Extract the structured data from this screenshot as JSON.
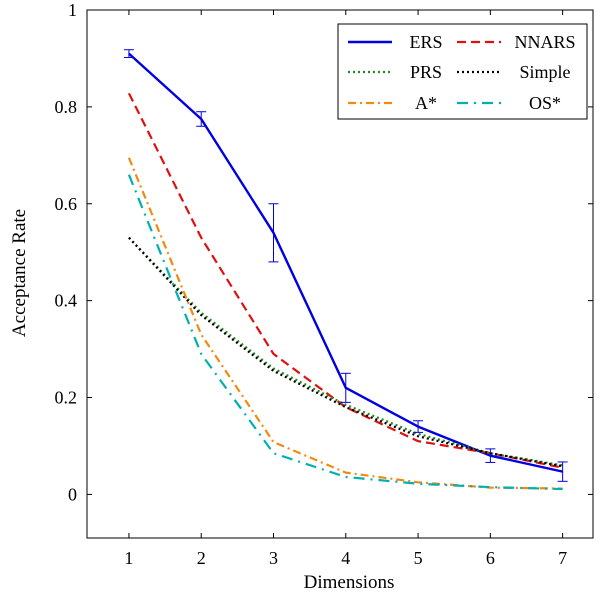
{
  "chart_data": {
    "type": "line",
    "title": "",
    "xlabel": "Dimensions",
    "ylabel": "Acceptance Rate",
    "x": [
      1,
      2,
      3,
      4,
      5,
      6,
      7
    ],
    "xticks": [
      "1",
      "2",
      "3",
      "4",
      "5",
      "6",
      "7"
    ],
    "yticks": [
      "0",
      "0.2",
      "0.4",
      "0.6",
      "0.8",
      "1"
    ],
    "ytick_values": [
      0,
      0.2,
      0.4,
      0.6,
      0.8,
      1
    ],
    "xlim": [
      0.42,
      7.42
    ],
    "ylim": [
      -0.09,
      1.0
    ],
    "grid": false,
    "legend_position": "top-right",
    "series": [
      {
        "name": "ERS",
        "values": [
          0.91,
          0.775,
          0.54,
          0.22,
          0.14,
          0.08,
          0.047
        ],
        "color": "#0000e0",
        "dash": "solid",
        "error": [
          0.008,
          0.015,
          0.06,
          0.03,
          0.012,
          0.014,
          0.02
        ]
      },
      {
        "name": "NNARS",
        "values": [
          0.828,
          0.53,
          0.29,
          0.18,
          0.11,
          0.085,
          0.055
        ],
        "color": "#e01010",
        "dash": "dashed"
      },
      {
        "name": "PRS",
        "values": [
          0.53,
          0.375,
          0.26,
          0.185,
          0.125,
          0.085,
          0.06
        ],
        "color": "#208a20",
        "dash": "dotted"
      },
      {
        "name": "Simple",
        "values": [
          0.53,
          0.37,
          0.255,
          0.18,
          0.12,
          0.085,
          0.058
        ],
        "color": "#000000",
        "dash": "dotted"
      },
      {
        "name": "A*",
        "values": [
          0.695,
          0.33,
          0.108,
          0.045,
          0.025,
          0.014,
          0.012
        ],
        "color": "#f08a10",
        "dash": "dashdot"
      },
      {
        "name": "OS*",
        "values": [
          0.66,
          0.29,
          0.085,
          0.036,
          0.022,
          0.015,
          0.011
        ],
        "color": "#00b0b0",
        "dash": "dashdotted"
      }
    ]
  }
}
